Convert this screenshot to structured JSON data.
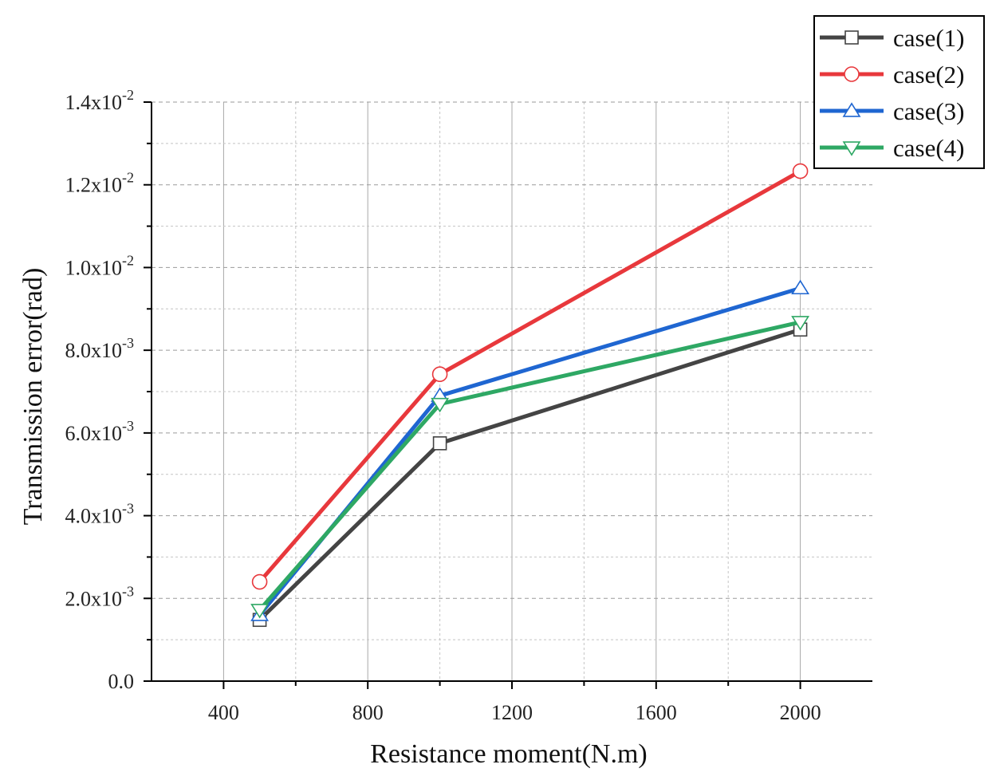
{
  "chart_data": {
    "type": "line",
    "xlabel": "Resistance moment(N.m)",
    "ylabel": "Transmission error(rad)",
    "x": [
      500,
      1000,
      2000
    ],
    "xlim": [
      200,
      2200
    ],
    "ylim": [
      0,
      0.014
    ],
    "x_ticks": [
      400,
      800,
      1200,
      1600,
      2000
    ],
    "x_tick_labels": [
      "400",
      "800",
      "1200",
      "1600",
      "2000"
    ],
    "y_ticks": [
      0,
      0.002,
      0.004,
      0.006,
      0.008,
      0.01,
      0.012,
      0.014
    ],
    "y_tick_labels": [
      {
        "mantissa": "0.0",
        "exp": ""
      },
      {
        "mantissa": "2.0x10",
        "exp": "-3"
      },
      {
        "mantissa": "4.0x10",
        "exp": "-3"
      },
      {
        "mantissa": "6.0x10",
        "exp": "-3"
      },
      {
        "mantissa": "8.0x10",
        "exp": "-3"
      },
      {
        "mantissa": "1.0x10",
        "exp": "-2"
      },
      {
        "mantissa": "1.2x10",
        "exp": "-2"
      },
      {
        "mantissa": "1.4x10",
        "exp": "-2"
      }
    ],
    "grid": true,
    "legend_position": "top-right",
    "series": [
      {
        "name": "case(1)",
        "color": "#444444",
        "marker": "square",
        "values": [
          0.00148,
          0.00575,
          0.0085
        ]
      },
      {
        "name": "case(2)",
        "color": "#e8383c",
        "marker": "circle",
        "values": [
          0.0024,
          0.00742,
          0.01233
        ]
      },
      {
        "name": "case(3)",
        "color": "#1f66d1",
        "marker": "triangle-up",
        "values": [
          0.0016,
          0.0069,
          0.0095
        ]
      },
      {
        "name": "case(4)",
        "color": "#2ea864",
        "marker": "triangle-down",
        "values": [
          0.00172,
          0.0067,
          0.00868
        ]
      }
    ]
  }
}
